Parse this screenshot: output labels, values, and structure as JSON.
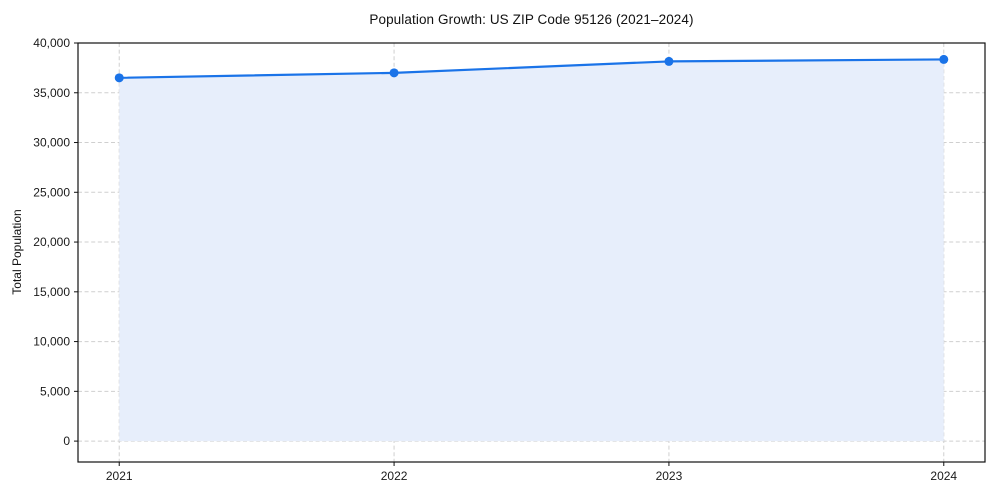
{
  "chart_data": {
    "type": "area",
    "title": "Population Growth: US ZIP Code 95126 (2021–2024)",
    "xlabel": "",
    "ylabel": "Total Population",
    "x": [
      2021,
      2022,
      2023,
      2024
    ],
    "series": [
      {
        "name": "Total Population",
        "values": [
          36500,
          37000,
          38150,
          38350
        ]
      }
    ],
    "xticks": [
      2021,
      2022,
      2023,
      2024
    ],
    "xtick_labels": [
      "2021",
      "2022",
      "2023",
      "2024"
    ],
    "yticks": [
      0,
      5000,
      10000,
      15000,
      20000,
      25000,
      30000,
      35000,
      40000
    ],
    "ytick_labels": [
      "0",
      "5,000",
      "10,000",
      "15,000",
      "20,000",
      "25,000",
      "30,000",
      "35,000",
      "40,000"
    ],
    "xlim": [
      2020.85,
      2024.15
    ],
    "ylim": [
      -2100,
      40000
    ],
    "grid": true,
    "legend": false,
    "colors": {
      "line": "#1a73e8",
      "fill": "#e7eefb",
      "grid": "#cfcfcf",
      "spine": "#111111",
      "tick_label": "#1a1a1a"
    }
  }
}
